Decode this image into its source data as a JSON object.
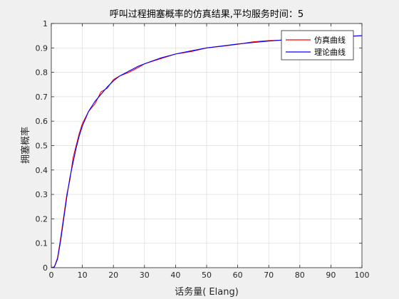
{
  "chart_data": {
    "type": "line",
    "title": "呼叫过程拥塞概率的仿真结果,平均服务时间：5",
    "xlabel": "话务量( Elang)",
    "ylabel": "拥塞概率",
    "xlim": [
      0,
      100
    ],
    "ylim": [
      0,
      1
    ],
    "xticks": [
      0,
      10,
      20,
      30,
      40,
      50,
      60,
      70,
      80,
      90,
      100
    ],
    "yticks": [
      0,
      0.1,
      0.2,
      0.3,
      0.4,
      0.5,
      0.6,
      0.7,
      0.8,
      0.9,
      1
    ],
    "xtick_labels": [
      "0",
      "10",
      "20",
      "30",
      "40",
      "50",
      "60",
      "70",
      "80",
      "90",
      "100"
    ],
    "ytick_labels": [
      "0",
      "0.1",
      "0.2",
      "0.3",
      "0.4",
      "0.5",
      "0.6",
      "0.7",
      "0.8",
      "0.9",
      "1"
    ],
    "grid": true,
    "legend_position": "top-right",
    "x": [
      0,
      1,
      2,
      3,
      4,
      5,
      6,
      7,
      8,
      9,
      10,
      12,
      14,
      16,
      18,
      20,
      22,
      25,
      28,
      30,
      35,
      40,
      45,
      50,
      55,
      60,
      65,
      70,
      75,
      80,
      85,
      90,
      95,
      100
    ],
    "series": [
      {
        "name": "仿真曲线",
        "color": "#ff0000",
        "values": [
          0,
          0.004,
          0.04,
          0.12,
          0.21,
          0.3,
          0.36,
          0.45,
          0.5,
          0.55,
          0.59,
          0.64,
          0.67,
          0.72,
          0.735,
          0.77,
          0.785,
          0.8,
          0.82,
          0.835,
          0.855,
          0.875,
          0.885,
          0.9,
          0.907,
          0.915,
          0.925,
          0.93,
          0.932,
          0.938,
          0.94,
          0.945,
          0.948,
          0.95
        ]
      },
      {
        "name": "理论曲线",
        "color": "#0000ff",
        "values": [
          0,
          0.003,
          0.035,
          0.11,
          0.2,
          0.29,
          0.37,
          0.43,
          0.49,
          0.54,
          0.58,
          0.64,
          0.68,
          0.71,
          0.74,
          0.765,
          0.785,
          0.805,
          0.825,
          0.835,
          0.858,
          0.875,
          0.888,
          0.9,
          0.908,
          0.916,
          0.922,
          0.928,
          0.933,
          0.937,
          0.941,
          0.944,
          0.947,
          0.95
        ]
      }
    ]
  }
}
